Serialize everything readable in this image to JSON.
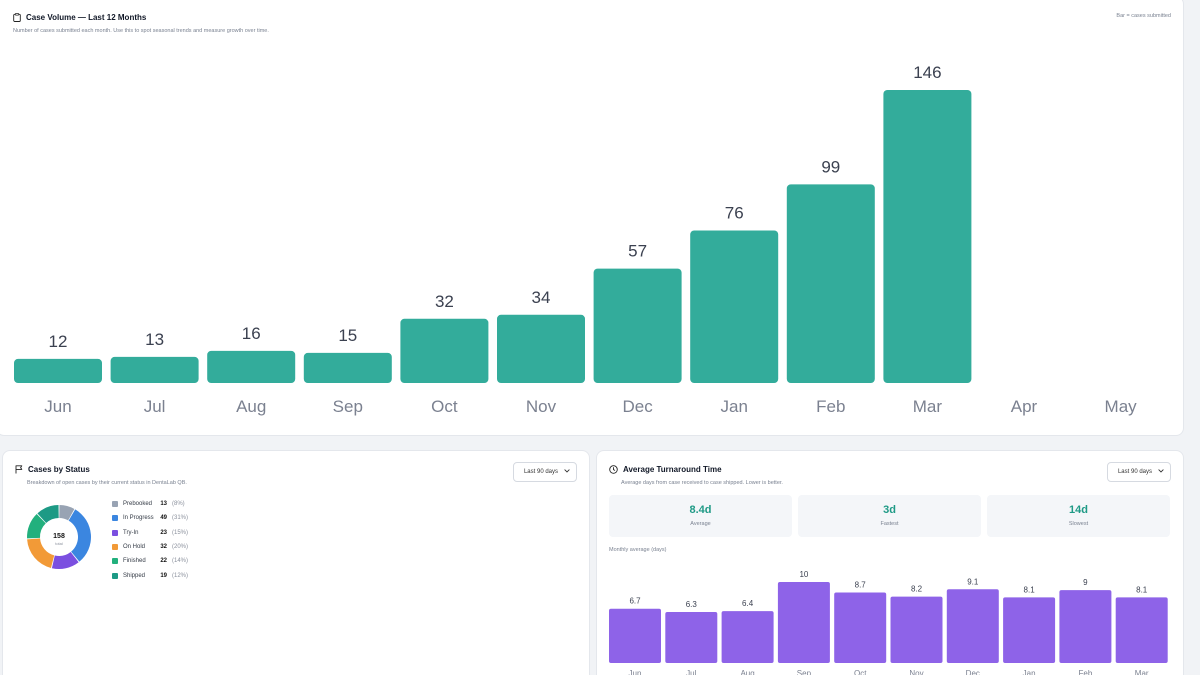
{
  "volume": {
    "title": "Case Volume — Last 12 Months",
    "subtitle": "Number of cases submitted each month. Use this to spot seasonal trends and measure growth over time.",
    "legend_note": "Bar = cases submitted",
    "icon": "clipboard-icon",
    "bar_color": "#33ac9b"
  },
  "status": {
    "title": "Cases by Status",
    "subtitle": "Breakdown of open cases by their current status in DentaLab QB.",
    "icon": "flag-icon",
    "range_select": "Last 90 days",
    "total_value": "158",
    "total_label": "total",
    "items": [
      {
        "label": "Prebooked",
        "count": "13",
        "pct": "(8%)",
        "color": "#98a3b3"
      },
      {
        "label": "In Progress",
        "count": "49",
        "pct": "(31%)",
        "color": "#3b86e0"
      },
      {
        "label": "Try-In",
        "count": "23",
        "pct": "(15%)",
        "color": "#7b4fe0"
      },
      {
        "label": "On Hold",
        "count": "32",
        "pct": "(20%)",
        "color": "#f29a37"
      },
      {
        "label": "Finished",
        "count": "22",
        "pct": "(14%)",
        "color": "#22b07d"
      },
      {
        "label": "Shipped",
        "count": "19",
        "pct": "(12%)",
        "color": "#1d9a85"
      }
    ]
  },
  "turnaround": {
    "title": "Average Turnaround Time",
    "subtitle": "Average days from case received to case shipped. Lower is better.",
    "icon": "clock-icon",
    "range_select": "Last 90 days",
    "stats": [
      {
        "value": "8.4d",
        "label": "Average"
      },
      {
        "value": "3d",
        "label": "Fastest"
      },
      {
        "value": "14d",
        "label": "Slowest"
      }
    ],
    "monthly_label": "Monthly average (days)",
    "bar_color": "#8e63e8"
  },
  "chart_data": [
    {
      "type": "bar",
      "categories": [
        "Jun",
        "Jul",
        "Aug",
        "Sep",
        "Oct",
        "Nov",
        "Dec",
        "Jan",
        "Feb",
        "Mar",
        "Apr",
        "May"
      ],
      "values": [
        12,
        13,
        16,
        15,
        32,
        34,
        57,
        76,
        99,
        146,
        null,
        null
      ],
      "title": "Case Volume — Last 12 Months",
      "xlabel": "",
      "ylabel": "",
      "ylim": [
        0,
        146
      ],
      "grid": false
    },
    {
      "type": "pie",
      "categories": [
        "Prebooked",
        "In Progress",
        "Try-In",
        "On Hold",
        "Finished",
        "Shipped"
      ],
      "values": [
        13,
        49,
        23,
        32,
        22,
        19
      ],
      "title": "Cases by Status"
    },
    {
      "type": "bar",
      "categories": [
        "Jun",
        "Jul",
        "Aug",
        "Sep",
        "Oct",
        "Nov",
        "Dec",
        "Jan",
        "Feb",
        "Mar"
      ],
      "values": [
        6.7,
        6.3,
        6.4,
        10,
        8.7,
        8.2,
        9.1,
        8.1,
        9,
        8.1
      ],
      "title": "Average Turnaround Time",
      "xlabel": "",
      "ylabel": "",
      "ylim": [
        0,
        10
      ],
      "grid": false
    }
  ]
}
